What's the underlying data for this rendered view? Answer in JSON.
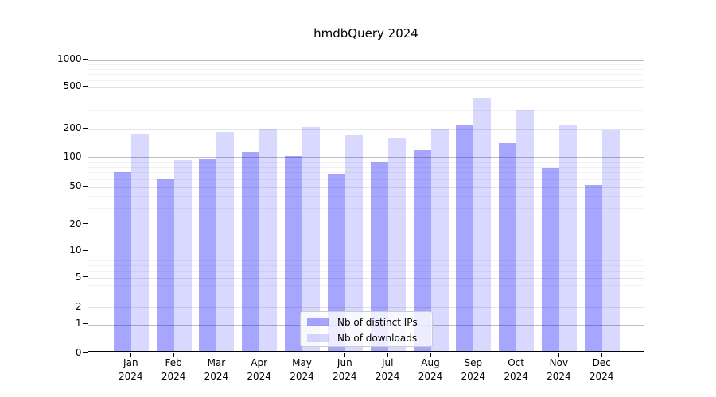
{
  "chart_data": {
    "type": "bar",
    "title": "hmdbQuery 2024",
    "categories": [
      "Jan",
      "Feb",
      "Mar",
      "Apr",
      "May",
      "Jun",
      "Jul",
      "Aug",
      "Sep",
      "Oct",
      "Nov",
      "Dec"
    ],
    "category_year": "2024",
    "series": [
      {
        "name": "Nb of distinct IPs",
        "color": "#0000ff",
        "alpha": 0.35,
        "values": [
          67,
          58,
          91,
          109,
          97,
          64,
          85,
          114,
          208,
          135,
          74,
          50
        ]
      },
      {
        "name": "Nb of downloads",
        "color": "#0000ff",
        "alpha": 0.15,
        "values": [
          165,
          90,
          178,
          190,
          200,
          162,
          150,
          192,
          375,
          290,
          205,
          185
        ]
      }
    ],
    "yscale": "symlog",
    "yticks": [
      0,
      1,
      2,
      5,
      10,
      20,
      50,
      100,
      200,
      500,
      1000
    ],
    "ylim": [
      0,
      1400
    ],
    "xlabel": "",
    "ylabel": "",
    "grid": true,
    "legend_position": "lower center"
  },
  "colors": {
    "bar_distinct_ips": "#a6a6fa",
    "bar_downloads": "#dbdbfa",
    "grid_power10": "#bdbdbd",
    "grid_major": "#e5e5e5",
    "grid_minor": "#f3f3f3",
    "axis": "#000000",
    "background": "#ffffff"
  }
}
